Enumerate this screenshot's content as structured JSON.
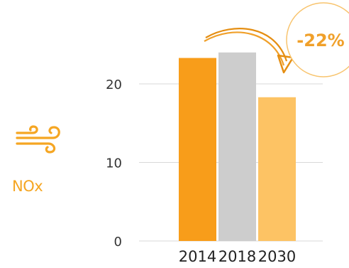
{
  "pollutant": {
    "label": "NOx",
    "icon": "wind-icon",
    "color": "#F5A623"
  },
  "change_badge": {
    "text": "-22%",
    "color": "#F0A02A",
    "arrow_icon": "curved-arrow-icon"
  },
  "chart_data": {
    "type": "bar",
    "categories": [
      "2014",
      "2018",
      "2030"
    ],
    "values": [
      23.3,
      24.0,
      18.3
    ],
    "colors": [
      "#F89D1A",
      "#CDCDCD",
      "#FDC364"
    ],
    "yticks": [
      0,
      10,
      20
    ],
    "ylim": [
      0,
      25
    ],
    "grid": true,
    "title": "",
    "xlabel": "",
    "ylabel": ""
  }
}
